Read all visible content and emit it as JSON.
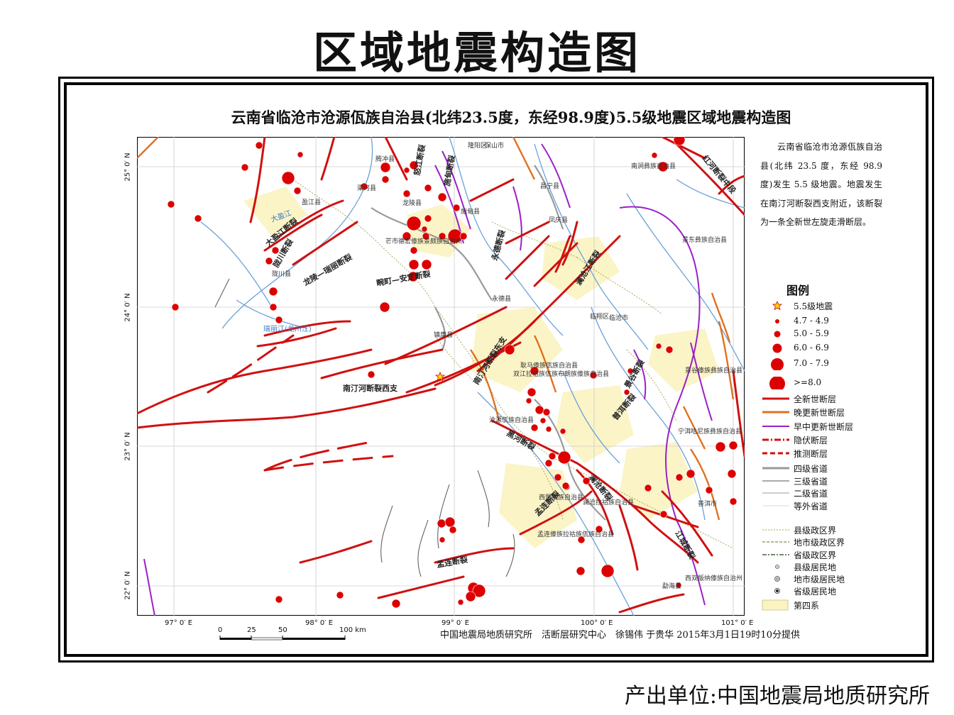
{
  "page_title": "区域地震构造图",
  "map_title": "云南省临沧市沧源佤族自治县(北纬23.5度，东经98.9度)5.5级地震区域地震构造图",
  "description": "云南省临沧市沧源佤族自治县(北纬 23.5 度，东经 98.9 度)发生 5.5 级地震。地震发生在南汀河断裂西支附近，该断裂为一条全新世左旋走滑断层。",
  "legend": {
    "title": "图例",
    "items": [
      {
        "label": "5.5级地震",
        "symbol": "star"
      },
      {
        "label": "4.7 - 4.9",
        "symbol": "circle-xs"
      },
      {
        "label": "5.0 - 5.9",
        "symbol": "circle-s"
      },
      {
        "label": "6.0 - 6.9",
        "symbol": "circle-m"
      },
      {
        "label": "7.0 - 7.9",
        "symbol": "circle-l"
      },
      {
        "label": ">=8.0",
        "symbol": "circle-xl"
      },
      {
        "label": "全新世断层",
        "symbol": "line-red"
      },
      {
        "label": "晚更新世断层",
        "symbol": "line-orange"
      },
      {
        "label": "早中更新世断层",
        "symbol": "line-purple"
      },
      {
        "label": "隐伏断层",
        "symbol": "line-dashdot-red"
      },
      {
        "label": "推测断层",
        "symbol": "line-dash-red"
      },
      {
        "label": "四级省道",
        "symbol": "line-grey-thick"
      },
      {
        "label": "三级省道",
        "symbol": "line-grey"
      },
      {
        "label": "二级省道",
        "symbol": "line-grey-thin"
      },
      {
        "label": "等外省道",
        "symbol": "line-grey-faint"
      },
      {
        "label": "县级政区界",
        "symbol": "line-dotted-olive"
      },
      {
        "label": "地市级政区界",
        "symbol": "line-dotted-olive2"
      },
      {
        "label": "省级政区界",
        "symbol": "line-dashdot-green"
      },
      {
        "label": "县级居民地",
        "symbol": "dot-small"
      },
      {
        "label": "地市级居民地",
        "symbol": "dot-ring"
      },
      {
        "label": "省级居民地",
        "symbol": "dot-bullseye"
      },
      {
        "label": "第四系",
        "symbol": "fill-yellow"
      }
    ]
  },
  "lon_ticks": [
    "97° 0′ E",
    "98° 0′ E",
    "99° 0′ E",
    "100° 0′ E",
    "101° 0′ E"
  ],
  "lat_ticks": [
    "25° 0′ N",
    "24° 0′ N",
    "23° 0′ N",
    "22° 0′ N"
  ],
  "scale_bar": {
    "labels": [
      "0",
      "25",
      "50",
      "100 km"
    ]
  },
  "credits": "中国地震局地质研究所　活断层研究中心　徐锡伟  于贵华  2015年3月1日19时10分提供",
  "producer": "产出单位:中国地震局地质研究所",
  "map_labels": {
    "places": [
      "腾冲县",
      "保山市",
      "隆阳区",
      "昌宁县",
      "凤庆县",
      "南涧彝族自治县",
      "景东彝族自治县",
      "芒市德宏傣族景颇族自治州",
      "盈江县",
      "陇川县",
      "施甸县",
      "永德县",
      "镇康县",
      "临翔区",
      "临沧市",
      "耿马傣族佤族自治县",
      "双江拉祜族佤族布朗族傣族自治县",
      "沧源佤族自治县",
      "景谷傣族彝族自治县",
      "宁洱哈尼族彝族自治县",
      "西盟佤族自治县",
      "澜沧拉祜族自治县",
      "孟连傣族拉祜族佤族自治县",
      "西双版纳傣族自治州",
      "勐海县",
      "梁河县",
      "龙陵县",
      "普洱市"
    ],
    "faults": [
      "南汀河断裂西支",
      "南汀河断裂东支",
      "黑河断裂",
      "孟连断裂",
      "畹町—安定断裂",
      "龙陵—瑞丽断裂",
      "陇川断裂",
      "大盈江断裂",
      "永德断裂",
      "澜沧江断裂",
      "红河断裂中段",
      "景谷断裂",
      "普洱断裂",
      "澜沧断裂",
      "江城断裂",
      "孟连断裂",
      "怒江断裂",
      "施甸断裂"
    ],
    "rivers": [
      "瑞丽江(龙川江)",
      "大盈江"
    ]
  },
  "colors": {
    "holocene_fault": "#d01010",
    "late_pleistocene_fault": "#e07020",
    "early_pleistocene_fault": "#9a20c8",
    "earthquake": "#dd0000",
    "river": "#6aa0d8",
    "quaternary": "#fbf3c0",
    "road": "#9a9a9a"
  }
}
